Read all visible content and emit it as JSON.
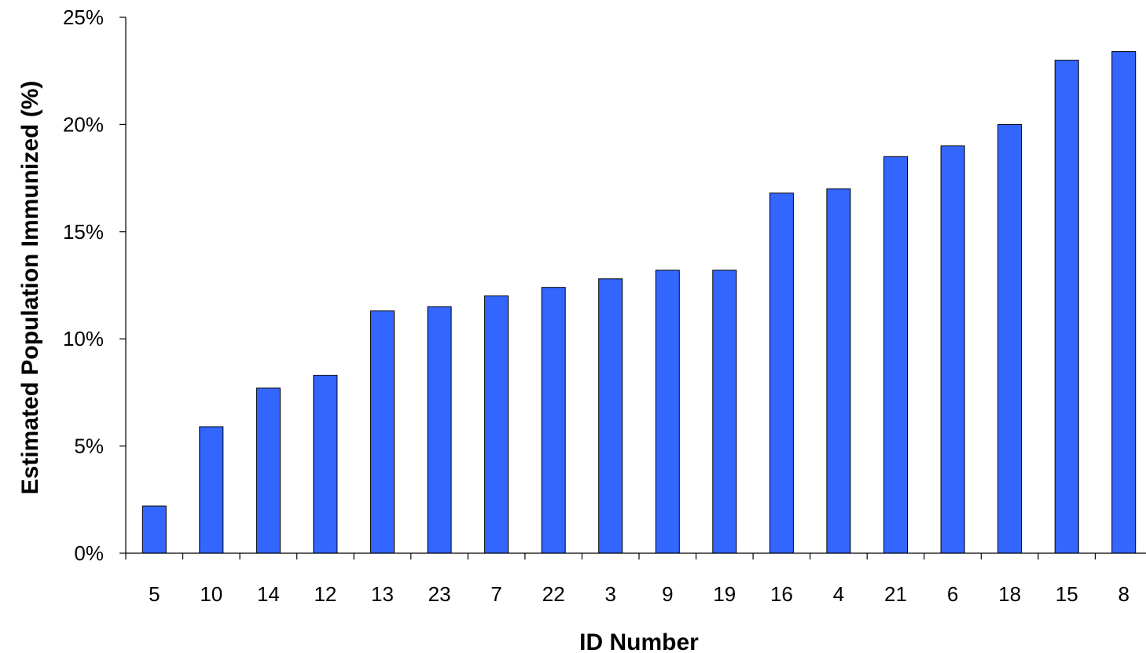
{
  "chart_data": {
    "type": "bar",
    "title": "",
    "xlabel": "ID Number",
    "ylabel": "Estimated Population Immunized (%)",
    "categories": [
      "5",
      "10",
      "14",
      "12",
      "13",
      "23",
      "7",
      "22",
      "3",
      "9",
      "19",
      "16",
      "4",
      "21",
      "6",
      "18",
      "15",
      "8"
    ],
    "values": [
      2.2,
      5.9,
      7.7,
      8.3,
      11.3,
      11.5,
      12.0,
      12.4,
      12.8,
      13.2,
      13.2,
      16.8,
      17.0,
      18.5,
      19.0,
      20.0,
      23.0,
      23.4
    ],
    "unit": "%",
    "ylim": [
      0,
      25
    ],
    "yticks": [
      0,
      5,
      10,
      15,
      20,
      25
    ],
    "ytick_labels": [
      "0%",
      "5%",
      "10%",
      "15%",
      "20%",
      "25%"
    ],
    "grid": false,
    "legend": "none",
    "bar_color": "#3366FF",
    "bar_edge_color": "#000000"
  }
}
